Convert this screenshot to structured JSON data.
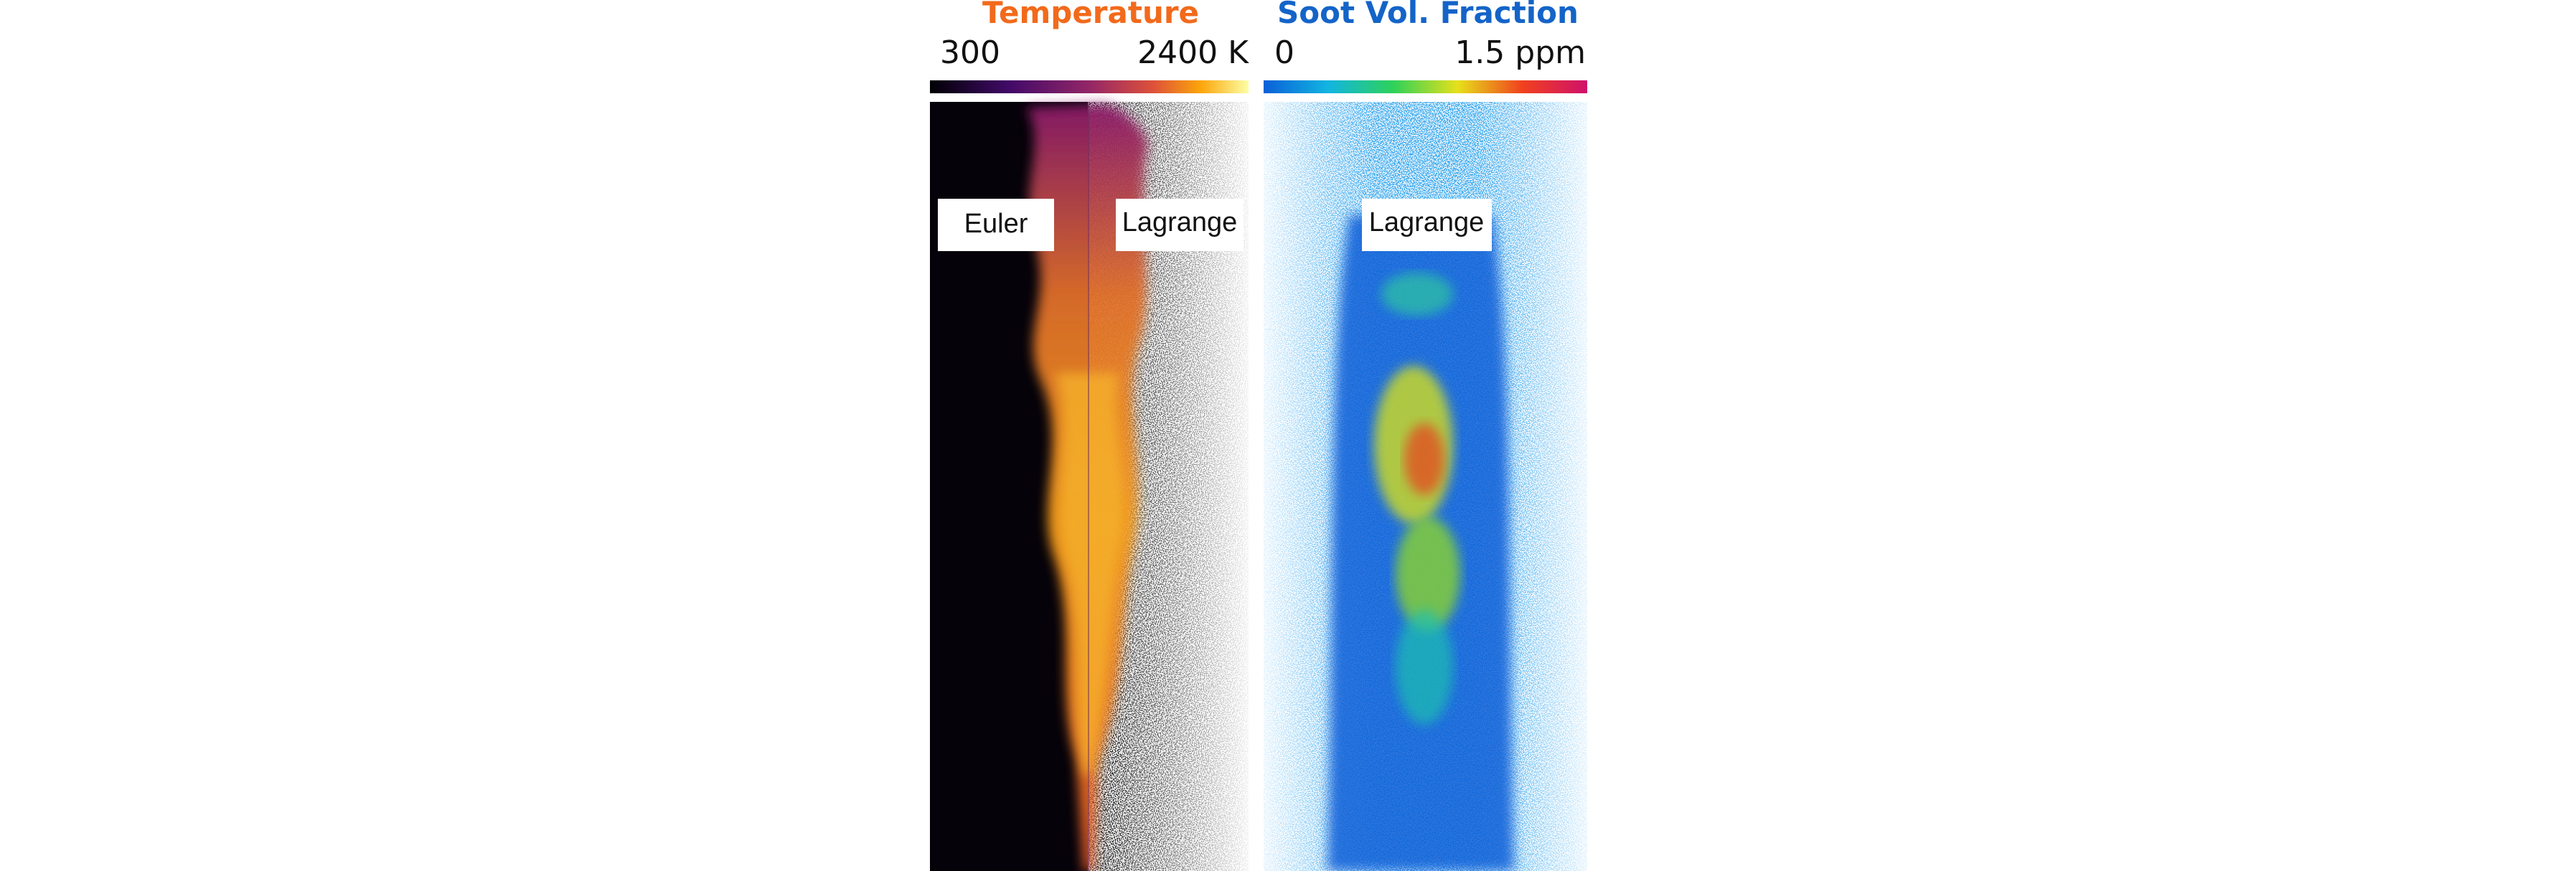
{
  "panels": [
    {
      "title": "Temperature",
      "colorbar": {
        "min": "300",
        "max": "2400 K"
      },
      "labels": [
        "Euler",
        "Lagrange"
      ]
    },
    {
      "title": "Soot Vol. Fraction",
      "colorbar": {
        "min": "0",
        "max": "1.5 ppm"
      },
      "labels": [
        "Lagrange"
      ]
    }
  ]
}
